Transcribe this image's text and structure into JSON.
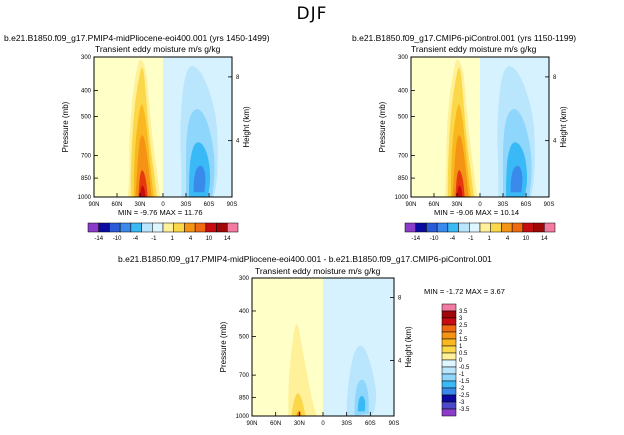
{
  "page_title": "DJF",
  "colors": {
    "warm_bg": "#ffffc8",
    "cool_bg": "#d6f2ff",
    "palette": [
      "#8a3cc8",
      "#4a4ac8",
      "#0a0aa0",
      "#2a5ad8",
      "#3a8aec",
      "#39b9f5",
      "#8fd6fc",
      "#b9e6fd",
      "#dff5ff",
      "#fdfdd9",
      "#fff09a",
      "#fbd74a",
      "#f9b820",
      "#f59314",
      "#ef6a10",
      "#e63a0e",
      "#c90c10",
      "#a00707",
      "#f37aa0"
    ]
  },
  "chart_data": [
    {
      "type": "contour",
      "id": "mid_pliocene",
      "title": "b.e21.B1850.f09_g17.PMIP4-midPliocene-eoi400.001 (yrs 1450-1499)",
      "subtitle": "Transient eddy moisture m/s g/kg",
      "ylabel": "Pressure (mb)",
      "ylabel_right": "Height (km)",
      "xticks": [
        "90N",
        "60N",
        "30N",
        "0",
        "30S",
        "60S",
        "90S"
      ],
      "yticks": [
        "300",
        "400",
        "500",
        "700",
        "850",
        "1000"
      ],
      "yticks_right": [
        "8",
        "4"
      ],
      "min": -9.76,
      "max": 11.76,
      "stats_text": "MIN =   -9.76    MAX =   11.76",
      "colorbar_labels": [
        "-14",
        "-10",
        "-4",
        "-1",
        "1",
        "4",
        "10",
        "14"
      ],
      "levels": [
        -14,
        -10,
        -4,
        -1,
        0,
        1,
        4,
        10,
        14
      ],
      "features": [
        {
          "sign": "positive",
          "center_lat": 27,
          "peak_pressure_mb": 1000,
          "peak_value": 11.76
        },
        {
          "sign": "negative",
          "center_lat": -45,
          "peak_pressure_mb": 900,
          "peak_value": -9.76
        }
      ]
    },
    {
      "type": "contour",
      "id": "pi_control",
      "title": "b.e21.B1850.f09_g17.CMIP6-piControl.001 (yrs 1150-1199)",
      "subtitle": "Transient eddy moisture m/s g/kg",
      "ylabel": "Pressure (mb)",
      "ylabel_right": "Height (km)",
      "xticks": [
        "90N",
        "60N",
        "30N",
        "0",
        "30S",
        "60S",
        "90S"
      ],
      "yticks": [
        "300",
        "400",
        "500",
        "700",
        "850",
        "1000"
      ],
      "yticks_right": [
        "8",
        "4"
      ],
      "min": -9.06,
      "max": 10.14,
      "stats_text": "MIN =   -9.06    MAX =   10.14",
      "colorbar_labels": [
        "-14",
        "-10",
        "-4",
        "-1",
        "1",
        "4",
        "10",
        "14"
      ],
      "levels": [
        -14,
        -10,
        -4,
        -1,
        0,
        1,
        4,
        10,
        14
      ],
      "features": [
        {
          "sign": "positive",
          "center_lat": 27,
          "peak_pressure_mb": 1000,
          "peak_value": 10.14
        },
        {
          "sign": "negative",
          "center_lat": -45,
          "peak_pressure_mb": 900,
          "peak_value": -9.06
        }
      ]
    },
    {
      "type": "contour",
      "id": "difference",
      "title": "b.e21.B1850.f09_g17.PMIP4-midPliocene-eoi400.001 - b.e21.B1850.f09_g17.CMIP6-piControl.001",
      "subtitle": "Transient eddy moisture m/s g/kg",
      "ylabel": "Pressure (mb)",
      "ylabel_right": "Height (km)",
      "xticks": [
        "90N",
        "60N",
        "30N",
        "0",
        "30S",
        "60S",
        "90S"
      ],
      "yticks": [
        "300",
        "400",
        "500",
        "700",
        "850",
        "1000"
      ],
      "yticks_right": [
        "8",
        "4"
      ],
      "min": -1.72,
      "max": 3.67,
      "stats_text": "MIN =   -1.72    MAX =    3.67",
      "colorbar_labels": [
        "3.5",
        "3",
        "2.5",
        "2",
        "1.5",
        "1",
        "0.5",
        "0",
        "-0.5",
        "-1",
        "-1.5",
        "-2",
        "-2.5",
        "-3",
        "-3.5"
      ],
      "levels": [
        -3.5,
        -3,
        -2.5,
        -2,
        -1.5,
        -1,
        -0.5,
        0,
        0.5,
        1,
        1.5,
        2,
        2.5,
        3,
        3.5
      ]
    }
  ]
}
